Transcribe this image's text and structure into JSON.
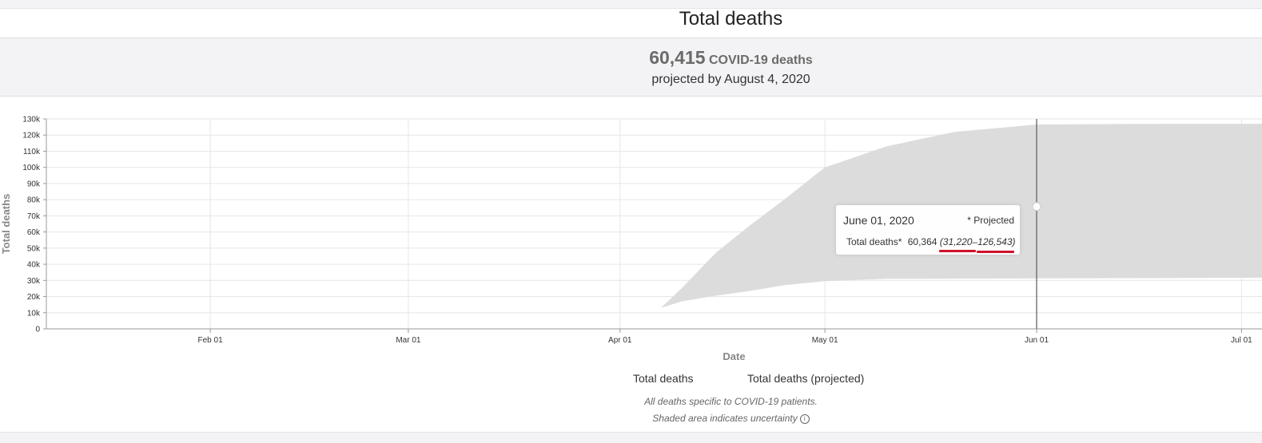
{
  "header": {
    "title": "Total deaths",
    "summary_value": "60,415",
    "summary_label": "COVID-19 deaths",
    "summary_subtitle": "projected by August 4, 2020"
  },
  "tooltip": {
    "date": "June 01, 2020",
    "projected_label": "* Projected",
    "metric_label": "Total deaths*",
    "value": "60,364",
    "range": "(31,220–126,543)"
  },
  "legend": {
    "item1": "Total deaths",
    "item2": "Total deaths (projected)"
  },
  "notes": {
    "line1": "All deaths specific to COVID-19 patients.",
    "line2": "Shaded area indicates uncertainty",
    "info_icon": "info-circle-icon"
  },
  "colors": {
    "band": "#dcdcdc",
    "annotation": "#d0112b",
    "background": "#f3f3f5"
  },
  "chart_data": {
    "type": "area",
    "xlabel": "Date",
    "ylabel": "Total deaths",
    "ylim": [
      0,
      130000
    ],
    "xlim": [
      "2020-01-08",
      "2020-07-04"
    ],
    "y_ticks": [
      0,
      10000,
      20000,
      30000,
      40000,
      50000,
      60000,
      70000,
      80000,
      90000,
      100000,
      110000,
      120000,
      130000
    ],
    "y_tick_labels": [
      "0",
      "10k",
      "20k",
      "30k",
      "40k",
      "50k",
      "60k",
      "70k",
      "80k",
      "90k",
      "100k",
      "110k",
      "120k",
      "130k"
    ],
    "x_ticks": [
      "2020-02-01",
      "2020-03-01",
      "2020-04-01",
      "2020-05-01",
      "2020-06-01",
      "2020-07-01"
    ],
    "x_tick_labels": [
      "Feb 01",
      "Mar 01",
      "Apr 01",
      "May 01",
      "Jun 01",
      "Jul 01"
    ],
    "grid": true,
    "legend_position": "bottom",
    "hover_date": "2020-06-01",
    "series": [
      {
        "name": "Total deaths (projected)",
        "x": [
          "2020-04-07",
          "2020-04-10",
          "2020-04-15",
          "2020-04-20",
          "2020-04-25",
          "2020-05-01",
          "2020-05-10",
          "2020-05-20",
          "2020-06-01",
          "2020-06-15",
          "2020-07-04"
        ],
        "lower": [
          13000,
          17000,
          20500,
          23500,
          27000,
          29500,
          31000,
          31100,
          31220,
          31400,
          31700
        ],
        "upper": [
          13000,
          25000,
          47000,
          64000,
          80000,
          100000,
          113000,
          122000,
          126543,
          126900,
          127000
        ]
      }
    ]
  }
}
